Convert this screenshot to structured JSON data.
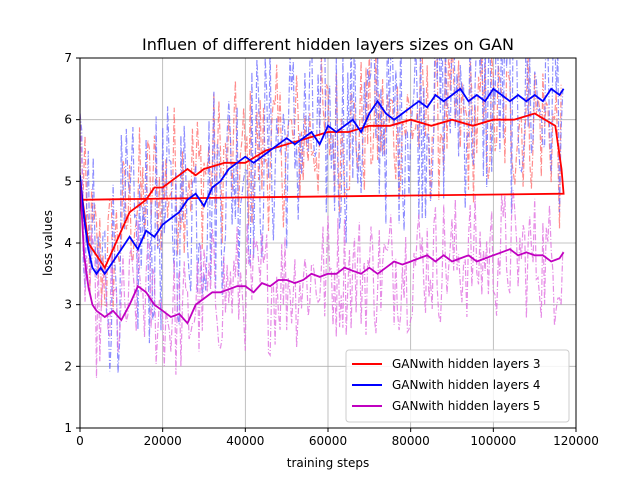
{
  "chart_data": {
    "type": "line",
    "title": "Influen of different hidden layers sizes on GAN",
    "xlabel": "training steps",
    "ylabel": "loss values",
    "xlim": [
      0,
      120000
    ],
    "ylim": [
      1,
      7
    ],
    "xticks": [
      0,
      20000,
      40000,
      60000,
      80000,
      100000,
      120000
    ],
    "yticks": [
      1,
      2,
      3,
      4,
      5,
      6,
      7
    ],
    "grid": true,
    "legend_position": "lower-right",
    "series": [
      {
        "name": "GANwith hidden layers 3",
        "color": "#ff0000",
        "raw_color": "#ff6f6f",
        "x": [
          0,
          2000,
          4000,
          6000,
          8000,
          10000,
          12000,
          14000,
          16000,
          18000,
          20000,
          22000,
          24000,
          26000,
          28000,
          30000,
          35000,
          40000,
          45000,
          50000,
          55000,
          60000,
          65000,
          70000,
          75000,
          80000,
          85000,
          90000,
          95000,
          100000,
          105000,
          110000,
          115000,
          116500,
          117000,
          117000,
          80000,
          40000,
          20000,
          10000,
          0
        ],
        "y": [
          5.0,
          4.0,
          3.8,
          3.6,
          3.9,
          4.2,
          4.5,
          4.6,
          4.7,
          4.9,
          4.9,
          5.0,
          5.1,
          5.2,
          5.1,
          5.2,
          5.3,
          5.3,
          5.5,
          5.6,
          5.7,
          5.8,
          5.8,
          5.9,
          5.9,
          6.0,
          5.9,
          6.0,
          5.9,
          6.0,
          6.0,
          6.1,
          5.9,
          5.2,
          4.8,
          4.8,
          4.77,
          4.74,
          4.72,
          4.71,
          4.7
        ]
      },
      {
        "name": "GANwith hidden layers 4",
        "color": "#0000ff",
        "raw_color": "#6f6fff",
        "x": [
          0,
          1000,
          2000,
          3000,
          4000,
          5000,
          6000,
          8000,
          10000,
          12000,
          14000,
          16000,
          18000,
          20000,
          22000,
          24000,
          26000,
          28000,
          30000,
          32000,
          34000,
          36000,
          38000,
          40000,
          42000,
          44000,
          46000,
          48000,
          50000,
          52000,
          54000,
          56000,
          58000,
          60000,
          62000,
          64000,
          66000,
          68000,
          70000,
          72000,
          74000,
          76000,
          78000,
          80000,
          82000,
          84000,
          86000,
          88000,
          90000,
          92000,
          94000,
          96000,
          98000,
          100000,
          102000,
          104000,
          106000,
          108000,
          110000,
          112000,
          114000,
          116000,
          117000
        ],
        "y": [
          5.1,
          4.4,
          3.9,
          3.6,
          3.5,
          3.6,
          3.5,
          3.7,
          3.9,
          4.1,
          3.9,
          4.2,
          4.1,
          4.3,
          4.4,
          4.5,
          4.7,
          4.8,
          4.6,
          4.9,
          5.0,
          5.2,
          5.3,
          5.4,
          5.3,
          5.4,
          5.5,
          5.6,
          5.7,
          5.6,
          5.7,
          5.8,
          5.6,
          5.9,
          5.8,
          5.9,
          6.0,
          5.8,
          6.1,
          6.3,
          6.1,
          6.0,
          6.1,
          6.2,
          6.3,
          6.2,
          6.4,
          6.3,
          6.4,
          6.5,
          6.3,
          6.4,
          6.3,
          6.5,
          6.4,
          6.3,
          6.4,
          6.3,
          6.4,
          6.3,
          6.5,
          6.4,
          6.5
        ]
      },
      {
        "name": "GANwith hidden layers 5",
        "color": "#c000c0",
        "raw_color": "#e070e0",
        "x": [
          0,
          1000,
          2000,
          3000,
          4000,
          6000,
          8000,
          10000,
          12000,
          14000,
          16000,
          18000,
          20000,
          22000,
          24000,
          26000,
          28000,
          30000,
          32000,
          34000,
          36000,
          38000,
          40000,
          42000,
          44000,
          46000,
          48000,
          50000,
          52000,
          54000,
          56000,
          58000,
          60000,
          62000,
          64000,
          66000,
          68000,
          70000,
          72000,
          74000,
          76000,
          78000,
          80000,
          82000,
          84000,
          86000,
          88000,
          90000,
          92000,
          94000,
          96000,
          98000,
          100000,
          102000,
          104000,
          106000,
          108000,
          110000,
          112000,
          114000,
          116000,
          117000
        ],
        "y": [
          5.0,
          3.8,
          3.3,
          3.0,
          2.9,
          2.8,
          2.9,
          2.75,
          3.0,
          3.3,
          3.2,
          3.0,
          2.9,
          2.8,
          2.85,
          2.7,
          3.0,
          3.1,
          3.2,
          3.2,
          3.25,
          3.3,
          3.3,
          3.2,
          3.35,
          3.3,
          3.4,
          3.4,
          3.35,
          3.4,
          3.5,
          3.45,
          3.5,
          3.5,
          3.6,
          3.55,
          3.5,
          3.6,
          3.5,
          3.6,
          3.7,
          3.65,
          3.7,
          3.75,
          3.8,
          3.7,
          3.8,
          3.7,
          3.75,
          3.8,
          3.7,
          3.75,
          3.8,
          3.85,
          3.9,
          3.8,
          3.85,
          3.8,
          3.8,
          3.7,
          3.75,
          3.85
        ]
      }
    ]
  }
}
